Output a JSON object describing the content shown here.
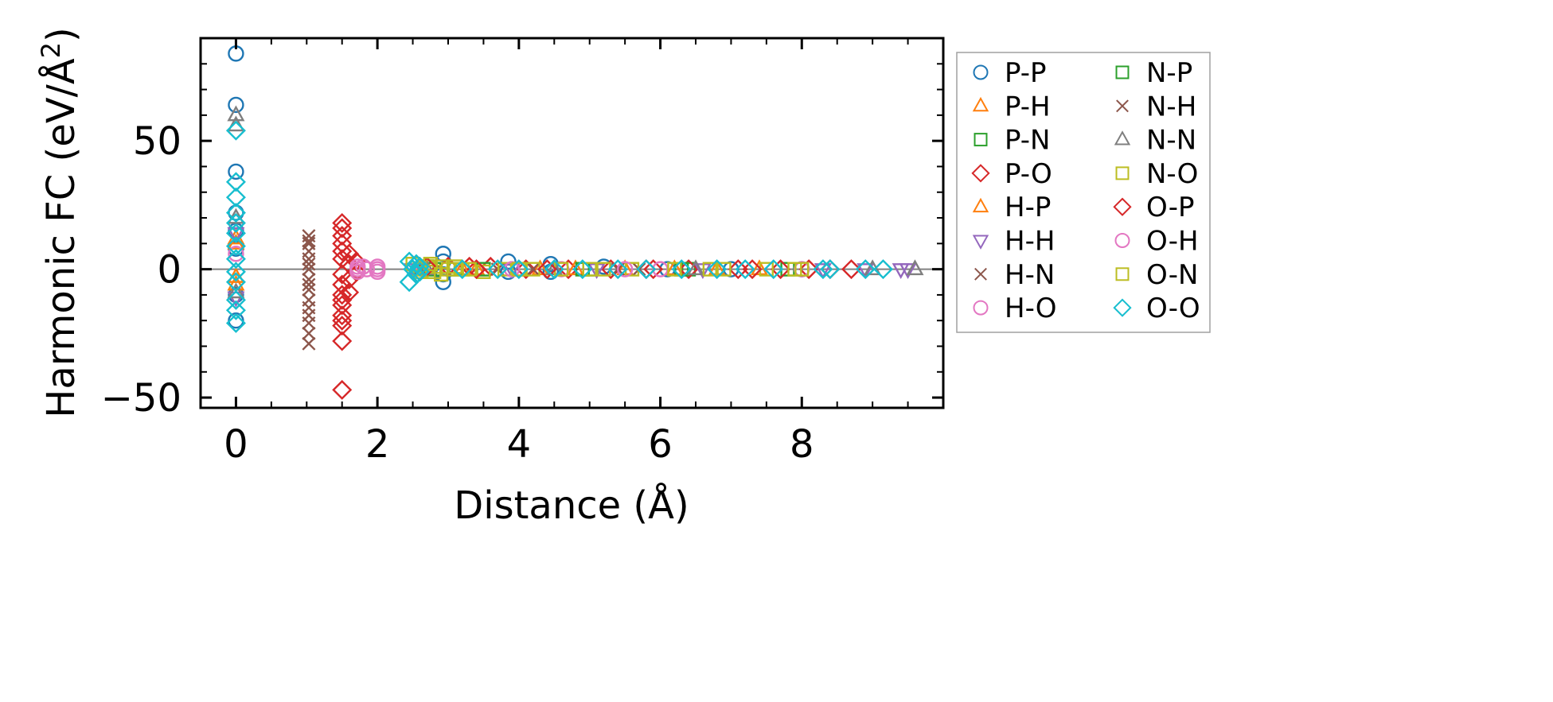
{
  "chart_data": {
    "type": "scatter",
    "xlabel": "Distance (Å)",
    "ylabel": "Harmonic FC (eV/Å",
    "ylabel_sup": "2",
    "ylabel_close": ")",
    "xlim": [
      -0.5,
      10.0
    ],
    "ylim": [
      -54,
      90
    ],
    "xticks": [
      0,
      2,
      4,
      6,
      8
    ],
    "xtick_labels": [
      "0",
      "2",
      "4",
      "6",
      "8"
    ],
    "yticks": [
      -50,
      0,
      50
    ],
    "ytick_labels": [
      "−50",
      "0",
      "50"
    ],
    "grid": false,
    "zero_line": true,
    "legend_position": "outside-right",
    "legend_columns": 2,
    "series": [
      {
        "name": "P-P",
        "marker": "circle",
        "color": "#1f77b4",
        "points": [
          [
            0,
            84
          ],
          [
            0,
            64
          ],
          [
            0,
            38
          ],
          [
            0,
            22
          ],
          [
            0,
            15
          ],
          [
            0,
            8
          ],
          [
            0,
            -10
          ],
          [
            0,
            -20
          ],
          [
            2.93,
            6
          ],
          [
            2.93,
            3
          ],
          [
            2.93,
            -2
          ],
          [
            2.93,
            -5
          ],
          [
            3.85,
            3
          ],
          [
            3.85,
            -1
          ],
          [
            4.45,
            2
          ],
          [
            4.45,
            -1
          ],
          [
            5.2,
            1
          ],
          [
            6.1,
            0
          ],
          [
            7.0,
            0
          ],
          [
            8.0,
            0
          ]
        ]
      },
      {
        "name": "P-H",
        "marker": "triangle-up",
        "color": "#ff7f0e",
        "points": [
          [
            0,
            12
          ],
          [
            0,
            -3
          ],
          [
            2.6,
            1
          ],
          [
            3.2,
            0
          ],
          [
            4.3,
            0
          ],
          [
            5.5,
            0
          ],
          [
            6.8,
            0
          ]
        ]
      },
      {
        "name": "P-N",
        "marker": "square",
        "color": "#2ca02c",
        "points": [
          [
            2.7,
            1
          ],
          [
            3.1,
            0
          ],
          [
            4.0,
            0
          ],
          [
            5.0,
            0
          ],
          [
            6.4,
            0
          ],
          [
            7.8,
            0
          ]
        ]
      },
      {
        "name": "P-O",
        "marker": "diamond",
        "color": "#d62728",
        "points": [
          [
            1.5,
            18
          ],
          [
            1.5,
            13
          ],
          [
            1.5,
            10
          ],
          [
            1.5,
            4
          ],
          [
            1.5,
            -2
          ],
          [
            1.5,
            -6
          ],
          [
            1.5,
            -10
          ],
          [
            1.5,
            -14
          ],
          [
            1.5,
            -18
          ],
          [
            1.5,
            -22
          ],
          [
            1.5,
            -28
          ],
          [
            1.5,
            -47
          ],
          [
            1.6,
            6
          ],
          [
            1.6,
            2
          ],
          [
            1.6,
            -4
          ],
          [
            1.6,
            -9
          ],
          [
            1.7,
            3
          ],
          [
            1.7,
            -1
          ],
          [
            3.0,
            1
          ],
          [
            3.3,
            1
          ],
          [
            3.6,
            1
          ],
          [
            4.1,
            0
          ],
          [
            4.7,
            0
          ],
          [
            5.3,
            0
          ],
          [
            5.9,
            0
          ],
          [
            6.4,
            0
          ],
          [
            7.1,
            0
          ],
          [
            7.7,
            0
          ],
          [
            8.1,
            0
          ],
          [
            8.7,
            0
          ]
        ]
      },
      {
        "name": "H-P",
        "marker": "triangle-up",
        "color": "#ff7f0e",
        "points": [
          [
            0,
            10
          ],
          [
            0,
            -6
          ],
          [
            2.55,
            0
          ],
          [
            3.4,
            0
          ],
          [
            4.8,
            0
          ],
          [
            6.2,
            0
          ],
          [
            7.4,
            0
          ]
        ]
      },
      {
        "name": "H-H",
        "marker": "triangle-down",
        "color": "#9467bd",
        "points": [
          [
            0,
            14
          ],
          [
            0,
            -11
          ],
          [
            2.5,
            0
          ],
          [
            3.9,
            0
          ],
          [
            5.1,
            0
          ],
          [
            6.6,
            0
          ],
          [
            8.3,
            0
          ],
          [
            8.9,
            0
          ],
          [
            9.4,
            0
          ],
          [
            9.5,
            0
          ]
        ]
      },
      {
        "name": "H-N",
        "marker": "x",
        "color": "#8c564b",
        "points": [
          [
            1.03,
            13
          ],
          [
            1.03,
            10
          ],
          [
            1.03,
            7
          ],
          [
            1.03,
            4
          ],
          [
            1.03,
            0
          ],
          [
            1.03,
            -4
          ],
          [
            1.03,
            -8
          ],
          [
            1.03,
            -12
          ],
          [
            1.03,
            -15
          ],
          [
            1.03,
            -21
          ],
          [
            1.03,
            -25
          ],
          [
            1.03,
            -29
          ],
          [
            2.6,
            0
          ],
          [
            4.2,
            0
          ],
          [
            5.7,
            0
          ]
        ]
      },
      {
        "name": "H-O",
        "marker": "circle",
        "color": "#e377c2",
        "points": [
          [
            0,
            6
          ],
          [
            1.72,
            1
          ],
          [
            1.72,
            -1
          ],
          [
            1.85,
            0
          ],
          [
            2.0,
            0
          ],
          [
            2.0,
            1
          ],
          [
            2.65,
            0
          ],
          [
            4.6,
            0
          ],
          [
            6.0,
            0
          ],
          [
            8.0,
            0
          ]
        ]
      },
      {
        "name": "N-P",
        "marker": "square",
        "color": "#2ca02c",
        "points": [
          [
            2.8,
            0
          ],
          [
            3.5,
            0
          ],
          [
            4.9,
            0
          ],
          [
            6.3,
            0
          ]
        ]
      },
      {
        "name": "N-H",
        "marker": "x",
        "color": "#8c564b",
        "points": [
          [
            1.03,
            11
          ],
          [
            1.03,
            2
          ],
          [
            1.03,
            -6
          ],
          [
            1.03,
            -18
          ],
          [
            3.7,
            0
          ],
          [
            5.4,
            0
          ]
        ]
      },
      {
        "name": "N-N",
        "marker": "triangle-up",
        "color": "#7f7f7f",
        "points": [
          [
            0,
            60
          ],
          [
            0,
            56
          ],
          [
            0,
            20
          ],
          [
            0,
            -9
          ],
          [
            2.7,
            0
          ],
          [
            4.5,
            0
          ],
          [
            6.5,
            0
          ],
          [
            9.0,
            0
          ],
          [
            9.6,
            0
          ]
        ]
      },
      {
        "name": "N-O",
        "marker": "square",
        "color": "#bcbd22",
        "points": [
          [
            2.5,
            2
          ],
          [
            2.6,
            -1
          ],
          [
            2.7,
            1
          ],
          [
            2.8,
            -1
          ],
          [
            2.9,
            1
          ],
          [
            3.0,
            0
          ],
          [
            3.2,
            0
          ],
          [
            3.5,
            -1
          ],
          [
            3.8,
            0
          ],
          [
            4.2,
            0
          ],
          [
            4.6,
            0
          ],
          [
            5.0,
            0
          ],
          [
            5.6,
            0
          ],
          [
            6.2,
            0
          ],
          [
            6.9,
            0
          ],
          [
            7.5,
            0
          ],
          [
            8.0,
            0
          ]
        ]
      },
      {
        "name": "O-P",
        "marker": "diamond",
        "color": "#d62728",
        "points": [
          [
            1.5,
            16
          ],
          [
            1.5,
            7
          ],
          [
            1.5,
            -12
          ],
          [
            1.5,
            -20
          ],
          [
            2.7,
            1
          ],
          [
            3.4,
            0
          ],
          [
            4.4,
            0
          ],
          [
            5.8,
            0
          ],
          [
            7.3,
            0
          ],
          [
            8.4,
            0
          ]
        ]
      },
      {
        "name": "O-H",
        "marker": "circle",
        "color": "#e377c2",
        "points": [
          [
            1.72,
            0
          ],
          [
            1.8,
            1
          ],
          [
            2.0,
            -1
          ],
          [
            3.9,
            0
          ],
          [
            5.5,
            0
          ]
        ]
      },
      {
        "name": "O-N",
        "marker": "square",
        "color": "#bcbd22",
        "points": [
          [
            2.6,
            0
          ],
          [
            2.75,
            2
          ],
          [
            2.9,
            -2
          ],
          [
            3.1,
            1
          ],
          [
            3.3,
            0
          ],
          [
            4.0,
            0
          ],
          [
            5.2,
            0
          ],
          [
            6.7,
            0
          ],
          [
            7.9,
            0
          ]
        ]
      },
      {
        "name": "O-O",
        "marker": "diamond",
        "color": "#17becf",
        "points": [
          [
            0,
            54
          ],
          [
            0,
            34
          ],
          [
            0,
            28
          ],
          [
            0,
            22
          ],
          [
            0,
            18
          ],
          [
            0,
            14
          ],
          [
            0,
            9
          ],
          [
            0,
            4
          ],
          [
            0,
            -1
          ],
          [
            0,
            -5
          ],
          [
            0,
            -12
          ],
          [
            0,
            -16
          ],
          [
            0,
            -21
          ],
          [
            2.45,
            -5
          ],
          [
            2.45,
            3
          ],
          [
            2.5,
            0
          ],
          [
            2.55,
            -2
          ],
          [
            2.55,
            2
          ],
          [
            2.6,
            1
          ],
          [
            2.6,
            -1
          ],
          [
            3.2,
            0
          ],
          [
            3.7,
            0
          ],
          [
            4.0,
            0
          ],
          [
            4.5,
            0
          ],
          [
            4.9,
            0
          ],
          [
            5.4,
            0
          ],
          [
            5.8,
            0
          ],
          [
            6.3,
            0
          ],
          [
            6.8,
            0
          ],
          [
            7.2,
            0
          ],
          [
            7.6,
            0
          ],
          [
            8.3,
            0
          ],
          [
            8.4,
            0
          ],
          [
            8.9,
            0
          ],
          [
            9.15,
            0
          ]
        ]
      }
    ]
  }
}
